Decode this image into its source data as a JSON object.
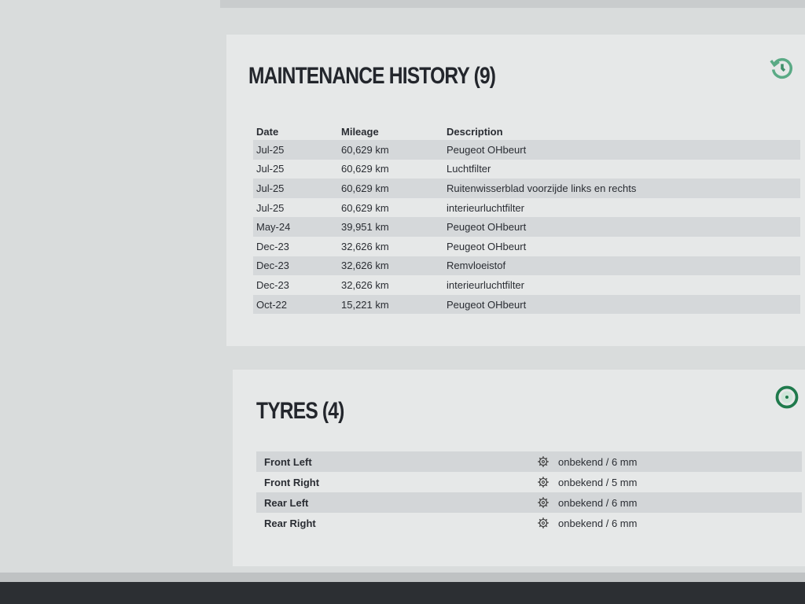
{
  "maintenance": {
    "title": "MAINTENANCE HISTORY (9)",
    "icon": "history-icon",
    "columns": [
      "Date",
      "Mileage",
      "Description"
    ],
    "rows": [
      [
        "Jul-25",
        "60,629 km",
        "Peugeot OHbeurt"
      ],
      [
        "Jul-25",
        "60,629 km",
        "Luchtfilter"
      ],
      [
        "Jul-25",
        "60,629 km",
        "Ruitenwisserblad voorzijde links en rechts"
      ],
      [
        "Jul-25",
        "60,629 km",
        "interieurluchtfilter"
      ],
      [
        "May-24",
        "39,951 km",
        "Peugeot OHbeurt"
      ],
      [
        "Dec-23",
        "32,626 km",
        "Peugeot OHbeurt"
      ],
      [
        "Dec-23",
        "32,626 km",
        "Remvloeistof"
      ],
      [
        "Dec-23",
        "32,626 km",
        "interieurluchtfilter"
      ],
      [
        "Oct-22",
        "15,221 km",
        "Peugeot OHbeurt"
      ]
    ]
  },
  "tyres": {
    "title": "TYRES (4)",
    "icon": "tyre-icon",
    "items": [
      {
        "position": "Front Left",
        "value": "onbekend / 6 mm"
      },
      {
        "position": "Front Right",
        "value": "onbekend / 5 mm"
      },
      {
        "position": "Rear Left",
        "value": "onbekend / 6 mm"
      },
      {
        "position": "Rear Right",
        "value": "onbekend / 6 mm"
      }
    ]
  },
  "colors": {
    "accent": "#2e8b5e"
  }
}
